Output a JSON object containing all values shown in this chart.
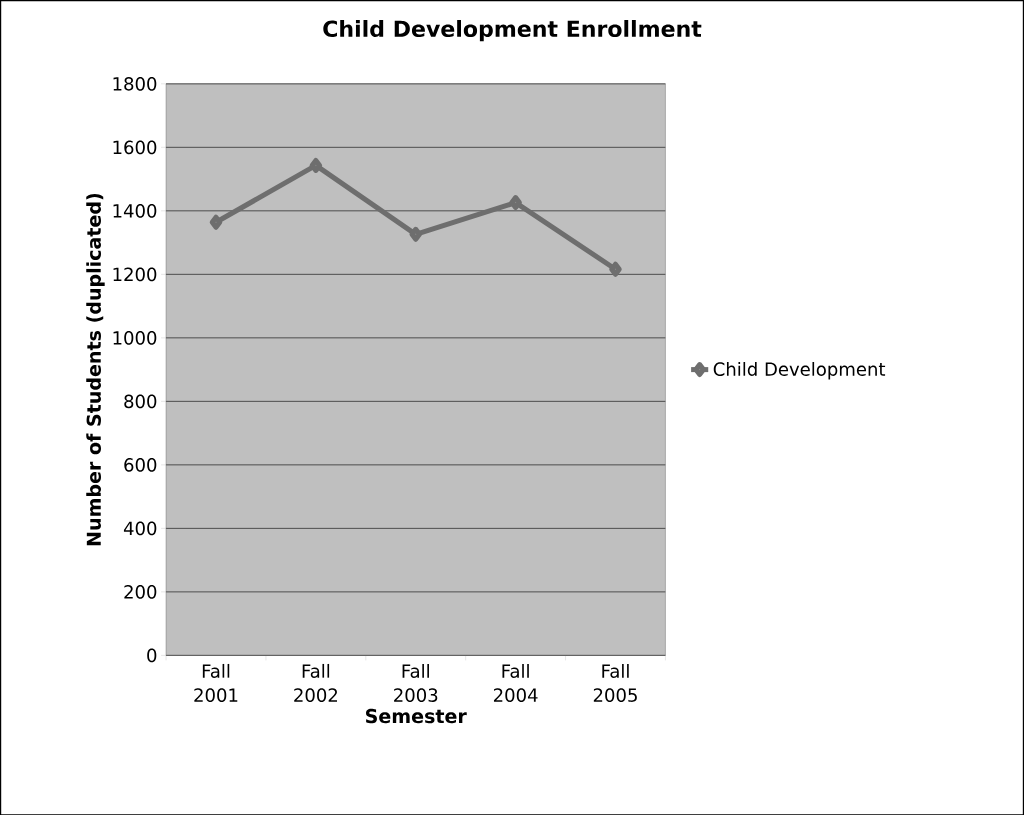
{
  "chart_data": {
    "type": "line",
    "title": "Child Development Enrollment",
    "xlabel": "Semester",
    "ylabel": "Number of Students (duplicated)",
    "categories": [
      "Fall 2001",
      "Fall 2002",
      "Fall 2003",
      "Fall 2004",
      "Fall 2005"
    ],
    "series": [
      {
        "name": "Child Development",
        "color": "#6e6e6e",
        "values": [
          1364,
          1543,
          1326,
          1426,
          1216
        ]
      }
    ],
    "ylim": [
      0,
      1800
    ],
    "yticks": [
      0,
      200,
      400,
      600,
      800,
      1000,
      1200,
      1400,
      1600,
      1800
    ],
    "grid": "y",
    "legend": "right",
    "marker": "diamond",
    "line_style": "solid"
  }
}
